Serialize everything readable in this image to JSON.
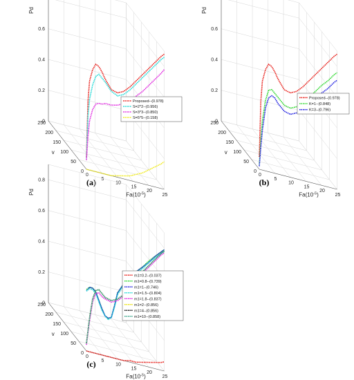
{
  "panels": [
    {
      "caption": "(a)",
      "z_label": "Pd",
      "x_label": "Fa(10",
      "x_label_sup": "-5",
      "x_label_end": ")",
      "y_label": "v",
      "z_ticks": [
        "0",
        "0.2",
        "0.4",
        "0.6",
        "0.8"
      ],
      "x_ticks": [
        "0",
        "5",
        "10",
        "15",
        "20",
        "25"
      ],
      "y_ticks": [
        "0",
        "50",
        "100",
        "150",
        "200",
        "250"
      ],
      "legend": [
        "Proposed--(0.978)",
        "S=2*2--(0.956)",
        "S=3*3--(0.850)",
        "S=5*5--(0.158)"
      ]
    },
    {
      "caption": "(b)",
      "z_label": "Pd",
      "x_label": "Fa(10",
      "x_label_sup": "-5",
      "x_label_end": ")",
      "y_label": "v",
      "z_ticks": [
        "0",
        "0.2",
        "0.4",
        "0.6",
        "0.8"
      ],
      "x_ticks": [
        "0",
        "5",
        "10",
        "15",
        "20",
        "25"
      ],
      "y_ticks": [
        "0",
        "50",
        "100",
        "150",
        "200",
        "250"
      ],
      "legend": [
        "Proposed--(0.978)",
        "K=1--(0.848)",
        "K=3--(0.796)"
      ]
    },
    {
      "caption": "(c)",
      "z_label": "Pd",
      "x_label": "Fa(10",
      "x_label_sup": "-5",
      "x_label_end": ")",
      "y_label": "v",
      "z_ticks": [
        "0",
        "0.2",
        "0.4",
        "0.6",
        "0.8"
      ],
      "x_ticks": [
        "0",
        "5",
        "10",
        "15",
        "20",
        "25"
      ],
      "y_ticks": [
        "0",
        "50",
        "100",
        "150",
        "200",
        "250"
      ],
      "legend": [
        "m1=0.2--(0.037)",
        "m1=0.8--(0.739)",
        "m1=1--(0.746)",
        "m1=1.5--(0.804)",
        "m1=1.8--(0.837)",
        "m1=2--(0.856)",
        "m1=4--(0.856)",
        "m1=10--(0.858)"
      ]
    }
  ],
  "chart_data": [
    {
      "type": "line",
      "panel": "(a)",
      "projection": "3d",
      "x_label": "Fa(10^-5)",
      "y_label": "v",
      "z_label": "Pd",
      "xlim": [
        0,
        25
      ],
      "ylim": [
        0,
        250
      ],
      "zlim": [
        0,
        0.9
      ],
      "grid": true,
      "legend_position": "right",
      "series": [
        {
          "name": "Proposed--(0.978)",
          "color": "#e8201b",
          "x": [
            0,
            0.5,
            1,
            2,
            3,
            4,
            5,
            6,
            8,
            10,
            12,
            14,
            16,
            18,
            20,
            22,
            24,
            25
          ],
          "z": [
            0.08,
            0.45,
            0.58,
            0.66,
            0.7,
            0.69,
            0.66,
            0.62,
            0.56,
            0.55,
            0.57,
            0.61,
            0.66,
            0.71,
            0.76,
            0.81,
            0.86,
            0.88
          ]
        },
        {
          "name": "S=2*2--(0.956)",
          "color": "#22d9d6",
          "x": [
            0,
            0.5,
            1,
            2,
            3,
            4,
            5,
            6,
            8,
            10,
            12,
            14,
            16,
            18,
            20,
            22,
            24,
            25
          ],
          "z": [
            0.07,
            0.35,
            0.46,
            0.56,
            0.62,
            0.64,
            0.62,
            0.6,
            0.55,
            0.53,
            0.55,
            0.59,
            0.64,
            0.69,
            0.74,
            0.79,
            0.84,
            0.86
          ]
        },
        {
          "name": "S=3*3--(0.850)",
          "color": "#e02be0",
          "x": [
            0,
            0.5,
            1,
            2,
            3,
            4,
            5,
            6,
            8,
            10,
            12,
            14,
            16,
            18,
            20,
            22,
            24,
            25
          ],
          "z": [
            0.06,
            0.22,
            0.32,
            0.4,
            0.44,
            0.45,
            0.45,
            0.46,
            0.46,
            0.47,
            0.49,
            0.52,
            0.56,
            0.6,
            0.65,
            0.7,
            0.75,
            0.78
          ]
        },
        {
          "name": "S=5*5--(0.158)",
          "color": "#f0ea20",
          "x": [
            0,
            2,
            4,
            6,
            8,
            10,
            12,
            14,
            16,
            18,
            20,
            22,
            24,
            25
          ],
          "z": [
            0.0,
            0.0,
            0.0,
            0.0,
            0.0,
            0.01,
            0.02,
            0.03,
            0.05,
            0.07,
            0.1,
            0.13,
            0.16,
            0.18
          ]
        }
      ]
    },
    {
      "type": "line",
      "panel": "(b)",
      "projection": "3d",
      "x_label": "Fa(10^-5)",
      "y_label": "v",
      "z_label": "Pd",
      "xlim": [
        0,
        25
      ],
      "ylim": [
        0,
        250
      ],
      "zlim": [
        0,
        0.9
      ],
      "grid": true,
      "legend_position": "right",
      "series": [
        {
          "name": "Proposed--(0.978)",
          "color": "#e8201b",
          "x": [
            0,
            0.5,
            1,
            2,
            3,
            4,
            5,
            6,
            8,
            10,
            12,
            14,
            16,
            18,
            20,
            22,
            24,
            25
          ],
          "z": [
            0.08,
            0.45,
            0.58,
            0.66,
            0.7,
            0.69,
            0.66,
            0.62,
            0.56,
            0.55,
            0.57,
            0.61,
            0.66,
            0.71,
            0.76,
            0.81,
            0.86,
            0.88
          ]
        },
        {
          "name": "K=1--(0.848)",
          "color": "#2ed82e",
          "x": [
            0,
            0.5,
            1,
            2,
            3,
            4,
            5,
            6,
            8,
            10,
            12,
            14,
            16,
            18,
            20,
            22,
            24,
            25
          ],
          "z": [
            0.03,
            0.2,
            0.32,
            0.46,
            0.53,
            0.54,
            0.52,
            0.5,
            0.46,
            0.45,
            0.47,
            0.51,
            0.55,
            0.6,
            0.65,
            0.69,
            0.74,
            0.76
          ]
        },
        {
          "name": "K=3--(0.796)",
          "color": "#1f1fe0",
          "x": [
            0,
            0.5,
            1,
            2,
            3,
            4,
            5,
            6,
            8,
            10,
            12,
            14,
            16,
            18,
            20,
            22,
            24,
            25
          ],
          "z": [
            0.02,
            0.15,
            0.26,
            0.41,
            0.48,
            0.5,
            0.49,
            0.46,
            0.42,
            0.41,
            0.43,
            0.46,
            0.5,
            0.55,
            0.6,
            0.64,
            0.69,
            0.71
          ]
        }
      ]
    },
    {
      "type": "line",
      "panel": "(c)",
      "projection": "3d",
      "x_label": "Fa(10^-5)",
      "y_label": "v",
      "z_label": "Pd",
      "xlim": [
        0,
        25
      ],
      "ylim": [
        0,
        250
      ],
      "zlim": [
        0,
        0.9
      ],
      "grid": true,
      "legend_position": "right",
      "series": [
        {
          "name": "m1=0.2--(0.037)",
          "color": "#e8201b",
          "x": [
            0,
            2,
            4,
            6,
            8,
            10,
            12,
            14,
            16,
            18,
            20,
            22,
            24,
            25
          ],
          "z": [
            0.0,
            0.0,
            0.0,
            0.0,
            0.0,
            0.0,
            0.0,
            0.01,
            0.01,
            0.02,
            0.03,
            0.04,
            0.05,
            0.06
          ]
        },
        {
          "name": "m1=0.8--(0.739)",
          "color": "#2ed82e",
          "x": [
            0,
            1,
            2,
            3,
            4,
            5,
            6,
            7,
            8,
            9,
            10,
            12,
            14,
            16,
            18,
            20,
            22,
            24,
            25
          ],
          "z": [
            0.4,
            0.42,
            0.42,
            0.4,
            0.35,
            0.3,
            0.26,
            0.25,
            0.26,
            0.34,
            0.43,
            0.5,
            0.55,
            0.6,
            0.64,
            0.69,
            0.73,
            0.77,
            0.79
          ]
        },
        {
          "name": "m1=1--(0.746)",
          "color": "#1f1fe0",
          "x": [
            0,
            1,
            2,
            3,
            4,
            5,
            6,
            7,
            8,
            9,
            10,
            12,
            14,
            16,
            18,
            20,
            22,
            24,
            25
          ],
          "z": [
            0.39,
            0.42,
            0.42,
            0.4,
            0.35,
            0.3,
            0.26,
            0.25,
            0.26,
            0.34,
            0.43,
            0.5,
            0.55,
            0.6,
            0.64,
            0.68,
            0.73,
            0.77,
            0.79
          ]
        },
        {
          "name": "m1=1.5--(0.804)",
          "color": "#22d9d6",
          "x": [
            0,
            1,
            2,
            3,
            4,
            5,
            6,
            7,
            8,
            9,
            10,
            12,
            14,
            16,
            18,
            20,
            22,
            24,
            25
          ],
          "z": [
            0.39,
            0.41,
            0.41,
            0.39,
            0.34,
            0.29,
            0.26,
            0.24,
            0.26,
            0.33,
            0.42,
            0.49,
            0.54,
            0.59,
            0.63,
            0.68,
            0.72,
            0.76,
            0.78
          ]
        },
        {
          "name": "m1=1.8--(0.837)",
          "color": "#e02be0",
          "x": [
            0,
            1,
            2,
            3,
            4,
            5,
            6,
            8,
            10,
            12,
            14,
            16,
            18,
            20,
            22,
            24,
            25
          ],
          "z": [
            0.04,
            0.2,
            0.33,
            0.39,
            0.4,
            0.38,
            0.37,
            0.36,
            0.38,
            0.42,
            0.48,
            0.54,
            0.6,
            0.65,
            0.7,
            0.75,
            0.77
          ]
        },
        {
          "name": "m1=2--(0.856)",
          "color": "#e8e000",
          "x": [
            0,
            1,
            2,
            3,
            4,
            5,
            6,
            8,
            10,
            12,
            14,
            16,
            18,
            20,
            22,
            24,
            25
          ],
          "z": [
            0.05,
            0.22,
            0.35,
            0.41,
            0.42,
            0.4,
            0.38,
            0.37,
            0.39,
            0.43,
            0.49,
            0.55,
            0.61,
            0.66,
            0.71,
            0.76,
            0.78
          ]
        },
        {
          "name": "m1=4--(0.856)",
          "color": "#111111",
          "x": [
            0,
            1,
            2,
            3,
            4,
            5,
            6,
            8,
            10,
            12,
            14,
            16,
            18,
            20,
            22,
            24,
            25
          ],
          "z": [
            0.05,
            0.22,
            0.35,
            0.41,
            0.42,
            0.4,
            0.38,
            0.37,
            0.39,
            0.43,
            0.49,
            0.55,
            0.61,
            0.66,
            0.71,
            0.76,
            0.78
          ]
        },
        {
          "name": "m1=10--(0.858)",
          "color": "#3aa58a",
          "x": [
            0,
            1,
            2,
            3,
            4,
            5,
            6,
            8,
            10,
            12,
            14,
            16,
            18,
            20,
            22,
            24,
            25
          ],
          "z": [
            0.05,
            0.22,
            0.35,
            0.41,
            0.42,
            0.4,
            0.38,
            0.37,
            0.39,
            0.43,
            0.49,
            0.55,
            0.61,
            0.66,
            0.71,
            0.76,
            0.78
          ]
        }
      ]
    }
  ]
}
